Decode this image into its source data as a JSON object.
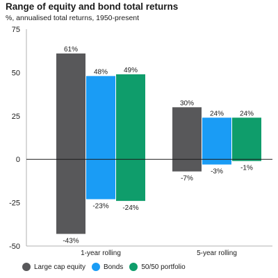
{
  "chart_data": {
    "type": "bar",
    "title": "Range of equity and bond total returns",
    "subtitle": "%, annualised total returns, 1950-present",
    "categories": [
      "1-year rolling",
      "5-year rolling"
    ],
    "ylim": [
      -50,
      75
    ],
    "yticks": [
      -50,
      -25,
      0,
      25,
      50,
      75
    ],
    "ytick_labels": [
      "-50",
      "-25",
      "0",
      "25",
      "50",
      "75"
    ],
    "grid": false,
    "legend_position": "bottom",
    "series": [
      {
        "name": "Large cap equity",
        "color": "#58585a",
        "high": [
          61,
          30
        ],
        "low": [
          -43,
          -7
        ],
        "high_labels": [
          "61%",
          "30%"
        ],
        "low_labels": [
          "-43%",
          "-7%"
        ]
      },
      {
        "name": "Bonds",
        "color": "#1a9cf5",
        "high": [
          48,
          24
        ],
        "low": [
          -23,
          -3
        ],
        "high_labels": [
          "48%",
          "24%"
        ],
        "low_labels": [
          "-23%",
          "-3%"
        ]
      },
      {
        "name": "50/50 portfolio",
        "color": "#0f9d6b",
        "high": [
          49,
          24
        ],
        "low": [
          -24,
          -1
        ],
        "high_labels": [
          "49%",
          "24%"
        ],
        "low_labels": [
          "-24%",
          "-1%"
        ]
      }
    ]
  }
}
